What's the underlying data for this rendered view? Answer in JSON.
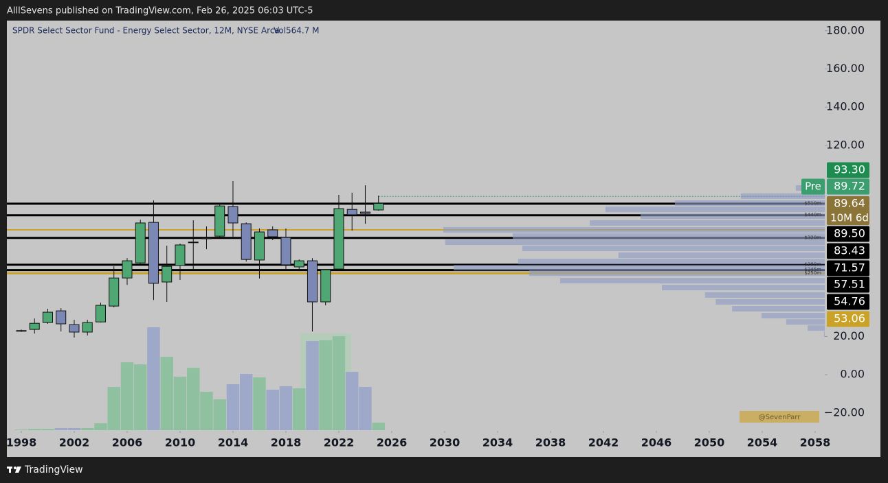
{
  "header": {
    "publisher": "AlllSevens published on TradingView.com, Feb 26, 2025 06:03 UTC-5"
  },
  "footer": {
    "brand": "TradingView"
  },
  "chart_data": {
    "type": "candlestick",
    "title": "SPDR Select Sector Fund - Energy Select Sector, 12M, NYSE Arca",
    "volume_legend": "Vol564.7 M",
    "watermark": "@SevenParr",
    "x": [
      1998,
      1999,
      2000,
      2001,
      2002,
      2003,
      2004,
      2005,
      2006,
      2007,
      2008,
      2009,
      2010,
      2011,
      2012,
      2013,
      2014,
      2015,
      2016,
      2017,
      2018,
      2019,
      2020,
      2021,
      2022,
      2023,
      2024,
      2025
    ],
    "open": [
      23,
      23.7,
      27.3,
      33.4,
      26.2,
      22.3,
      27.6,
      35.9,
      50.6,
      58.5,
      79.7,
      48.5,
      57.1,
      69.3,
      71.1,
      72.5,
      88.0,
      79.0,
      60.0,
      75.8,
      71.8,
      56.4,
      59.6,
      38.1,
      55.3,
      86.5,
      85.1,
      86.2
    ],
    "high": [
      23.6,
      29.4,
      34.5,
      34.8,
      28.7,
      28.7,
      37.7,
      56.7,
      61.0,
      81.1,
      91.2,
      67.5,
      68.6,
      80.8,
      77.6,
      89.8,
      101.3,
      79.7,
      76.5,
      77.6,
      76.5,
      60.3,
      61.0,
      55.3,
      94.1,
      95.2,
      99.1,
      93.7
    ],
    "low": [
      22.4,
      21.5,
      26.6,
      22.6,
      19.4,
      20.5,
      27.3,
      35.2,
      47.0,
      57.8,
      39.1,
      38.1,
      49.6,
      54.9,
      65.7,
      71.8,
      72.2,
      59.2,
      50.3,
      70.4,
      55.3,
      54.2,
      22.6,
      36.3,
      54.2,
      75.4,
      79.0,
      85.8
    ],
    "close": [
      23.1,
      26.9,
      32.7,
      26.6,
      22.3,
      27.3,
      36.3,
      50.6,
      59.6,
      79.4,
      47.8,
      56.7,
      67.9,
      69.4,
      71.5,
      88.3,
      79.4,
      60.3,
      74.7,
      72.2,
      57.5,
      59.6,
      38.1,
      54.9,
      86.9,
      83.7,
      84.4,
      89.64
    ],
    "volume": [
      51,
      103,
      103,
      154,
      154,
      154,
      513,
      3232,
      5079,
      4925,
      7695,
      5489,
      4001,
      4668,
      2873,
      2309,
      3437,
      4207,
      3950,
      3027,
      3283,
      3129,
      6669,
      6720,
      7028,
      4361,
      3232,
      564.7
    ],
    "volume_lim": [
      0,
      7700
    ],
    "up_color": "#4fa874",
    "down_color": "#7b87b4",
    "volume_up_color": "#8fc0a0",
    "volume_down_color": "#9ea8c8",
    "xlim": [
      1996.91,
      2058.73
    ],
    "xticks": [
      1998,
      2002,
      2006,
      2010,
      2014,
      2018,
      2022,
      2026,
      2030,
      2034,
      2038,
      2042,
      2046,
      2050,
      2054,
      2058
    ],
    "ylim": [
      -29.4,
      185.3
    ],
    "yticks": [
      {
        "value": 180,
        "label": "180.00"
      },
      {
        "value": 160,
        "label": "160.00"
      },
      {
        "value": 140,
        "label": "140.00"
      },
      {
        "value": 120,
        "label": "120.00"
      },
      {
        "value": 20,
        "label": "20.00"
      },
      {
        "value": 0,
        "label": "0.00"
      },
      {
        "value": -20,
        "label": "−20.00"
      }
    ],
    "price_tags": [
      {
        "value": 93.3,
        "label": "93.30",
        "color": "#1e8c50",
        "line_color": "#3d8f7a",
        "line_style": "dotted"
      },
      {
        "value": 89.72,
        "label": "89.72",
        "color": "#3a9e6e",
        "prefix": "Pre"
      },
      {
        "value": 89.64,
        "label": "89.64",
        "sub": "10M 6d",
        "color": "#8b7438"
      },
      {
        "value": 89.5,
        "label": "89.50",
        "color": "#000000",
        "line_color": "#000000",
        "tag": "$510m"
      },
      {
        "value": 83.43,
        "label": "83.43",
        "color": "#000000",
        "line_color": "#000000",
        "tag": "$440m"
      },
      {
        "value": 71.57,
        "label": "71.57",
        "color": "#000000",
        "line_color": "#000000",
        "tag": "$320m"
      },
      {
        "value": 57.51,
        "label": "57.51",
        "color": "#000000",
        "line_color": "#000000",
        "tag": "$280m"
      },
      {
        "value": 54.76,
        "label": "54.76",
        "color": "#000000",
        "line_color": "#000000",
        "tag": "$245m"
      },
      {
        "value": 53.06,
        "label": "53.06",
        "color": "#c9a227",
        "line_color": "#c9a227",
        "tag": "$250m"
      }
    ],
    "extra_levels": [
      {
        "value": 75.8,
        "color": "#c9a227"
      }
    ],
    "volume_profile": {
      "prices": [
        97.7,
        93.4,
        89.8,
        86.5,
        82.9,
        79.4,
        75.8,
        72.5,
        69.3,
        66.1,
        62.5,
        59.2,
        56.0,
        53.1,
        49.2,
        45.6,
        41.7,
        38.1,
        34.5,
        30.9,
        27.6,
        24.4,
        21.2
      ],
      "values": [
        7.6,
        22,
        39.3,
        57.5,
        48.3,
        61.6,
        100,
        81.8,
        99.5,
        79.3,
        54.1,
        80.4,
        97.3,
        77.5,
        69.4,
        42.7,
        31.4,
        28.6,
        24.3,
        16.6,
        10.1,
        4.5,
        0.2
      ],
      "xlim": [
        0,
        100
      ],
      "color": "#8e9cc4"
    }
  }
}
